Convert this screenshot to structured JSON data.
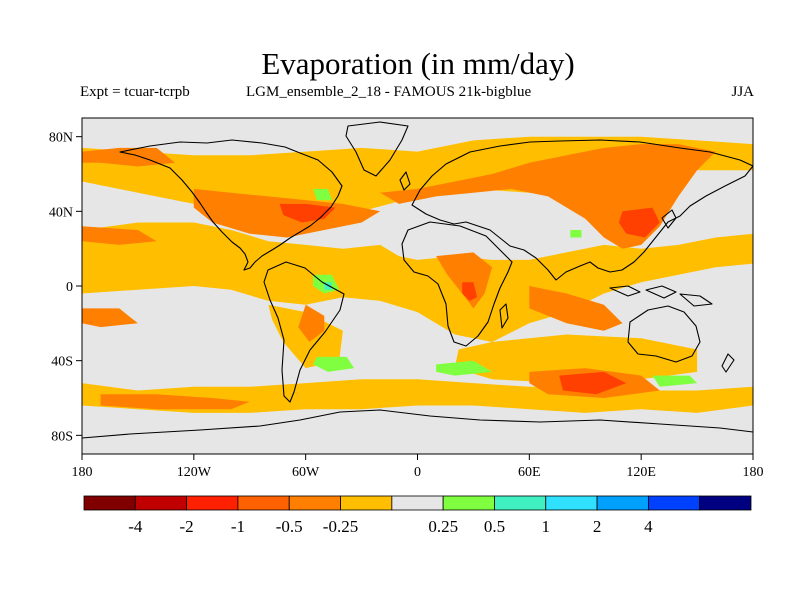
{
  "title": "Evaporation (in mm/day)",
  "subtitle_left": "Expt = tcuar-tcrpb",
  "subtitle_center": "LGM_ensemble_2_18 - FAMOUS 21k-bigblue",
  "subtitle_right": "JJA",
  "map": {
    "projection": "equirectangular",
    "lon_range": [
      -180,
      180
    ],
    "lat_range": [
      -90,
      90
    ],
    "background_color": "#e6e6e6",
    "coastline_color": "#000000",
    "lat_ticks": [
      {
        "value": 80,
        "label": "80N"
      },
      {
        "value": 40,
        "label": "40N"
      },
      {
        "value": 0,
        "label": "0"
      },
      {
        "value": -40,
        "label": "40S"
      },
      {
        "value": -80,
        "label": "80S"
      }
    ],
    "lon_ticks": [
      {
        "value": -180,
        "label": "180"
      },
      {
        "value": -120,
        "label": "120W"
      },
      {
        "value": -60,
        "label": "60W"
      },
      {
        "value": 0,
        "label": "0"
      },
      {
        "value": 60,
        "label": "60E"
      },
      {
        "value": 120,
        "label": "120E"
      },
      {
        "value": 180,
        "label": "180"
      }
    ],
    "field_regions": [
      {
        "level": -0.25,
        "color": "#ffbf00",
        "points": [
          [
            -180,
            74
          ],
          [
            -150,
            72
          ],
          [
            -120,
            70
          ],
          [
            -90,
            70
          ],
          [
            -60,
            72
          ],
          [
            -30,
            74
          ],
          [
            0,
            72
          ],
          [
            30,
            78
          ],
          [
            60,
            80
          ],
          [
            90,
            80
          ],
          [
            120,
            80
          ],
          [
            150,
            78
          ],
          [
            180,
            76
          ],
          [
            180,
            62
          ],
          [
            150,
            62
          ],
          [
            120,
            58
          ],
          [
            90,
            52
          ],
          [
            60,
            50
          ],
          [
            30,
            52
          ],
          [
            0,
            48
          ],
          [
            -30,
            40
          ],
          [
            -60,
            40
          ],
          [
            -90,
            42
          ],
          [
            -120,
            44
          ],
          [
            -150,
            50
          ],
          [
            -180,
            56
          ]
        ]
      },
      {
        "level": -0.25,
        "color": "#ffbf00",
        "points": [
          [
            -180,
            30
          ],
          [
            -150,
            34
          ],
          [
            -120,
            34
          ],
          [
            -100,
            30
          ],
          [
            -80,
            24
          ],
          [
            -60,
            22
          ],
          [
            -40,
            20
          ],
          [
            -20,
            22
          ],
          [
            -10,
            16
          ],
          [
            0,
            14
          ],
          [
            20,
            16
          ],
          [
            40,
            14
          ],
          [
            60,
            14
          ],
          [
            80,
            18
          ],
          [
            100,
            22
          ],
          [
            120,
            20
          ],
          [
            140,
            22
          ],
          [
            160,
            26
          ],
          [
            180,
            28
          ],
          [
            180,
            12
          ],
          [
            160,
            10
          ],
          [
            140,
            6
          ],
          [
            120,
            2
          ],
          [
            100,
            -4
          ],
          [
            80,
            -14
          ],
          [
            60,
            -20
          ],
          [
            40,
            -30
          ],
          [
            20,
            -26
          ],
          [
            0,
            -14
          ],
          [
            -20,
            -8
          ],
          [
            -40,
            -6
          ],
          [
            -60,
            -10
          ],
          [
            -80,
            -8
          ],
          [
            -100,
            -2
          ],
          [
            -120,
            0
          ],
          [
            -150,
            -2
          ],
          [
            -180,
            -4
          ]
        ]
      },
      {
        "level": -0.25,
        "color": "#ffbf00",
        "points": [
          [
            -80,
            -10
          ],
          [
            -60,
            -14
          ],
          [
            -40,
            -24
          ],
          [
            -42,
            -40
          ],
          [
            -60,
            -44
          ],
          [
            -72,
            -30
          ],
          [
            -78,
            -18
          ]
        ]
      },
      {
        "level": -0.25,
        "color": "#ffbf00",
        "points": [
          [
            40,
            -30
          ],
          [
            80,
            -26
          ],
          [
            120,
            -28
          ],
          [
            150,
            -34
          ],
          [
            150,
            -46
          ],
          [
            120,
            -50
          ],
          [
            80,
            -52
          ],
          [
            40,
            -50
          ],
          [
            20,
            -44
          ],
          [
            22,
            -34
          ]
        ]
      },
      {
        "level": -0.25,
        "color": "#ffbf00",
        "points": [
          [
            -180,
            -52
          ],
          [
            -150,
            -56
          ],
          [
            -120,
            -54
          ],
          [
            -90,
            -54
          ],
          [
            -60,
            -52
          ],
          [
            -30,
            -50
          ],
          [
            0,
            -50
          ],
          [
            30,
            -52
          ],
          [
            60,
            -54
          ],
          [
            90,
            -54
          ],
          [
            120,
            -56
          ],
          [
            150,
            -56
          ],
          [
            180,
            -54
          ],
          [
            180,
            -64
          ],
          [
            150,
            -68
          ],
          [
            120,
            -66
          ],
          [
            90,
            -68
          ],
          [
            60,
            -66
          ],
          [
            30,
            -64
          ],
          [
            0,
            -64
          ],
          [
            -30,
            -66
          ],
          [
            -60,
            -66
          ],
          [
            -90,
            -68
          ],
          [
            -120,
            -68
          ],
          [
            -150,
            -66
          ],
          [
            -180,
            -64
          ]
        ]
      },
      {
        "level": -0.5,
        "color": "#ff8000",
        "points": [
          [
            -180,
            72
          ],
          [
            -160,
            74
          ],
          [
            -140,
            74
          ],
          [
            -130,
            66
          ],
          [
            -150,
            64
          ],
          [
            -170,
            66
          ],
          [
            -180,
            66
          ]
        ]
      },
      {
        "level": -0.5,
        "color": "#ff8000",
        "points": [
          [
            -120,
            52
          ],
          [
            -100,
            50
          ],
          [
            -80,
            48
          ],
          [
            -60,
            46
          ],
          [
            -40,
            44
          ],
          [
            -20,
            40
          ],
          [
            -30,
            34
          ],
          [
            -50,
            30
          ],
          [
            -70,
            26
          ],
          [
            -90,
            28
          ],
          [
            -110,
            34
          ],
          [
            -120,
            42
          ]
        ]
      },
      {
        "level": -0.5,
        "color": "#ff8000",
        "points": [
          [
            -20,
            50
          ],
          [
            0,
            52
          ],
          [
            20,
            56
          ],
          [
            40,
            60
          ],
          [
            60,
            66
          ],
          [
            80,
            70
          ],
          [
            100,
            74
          ],
          [
            120,
            76
          ],
          [
            140,
            76
          ],
          [
            160,
            72
          ],
          [
            150,
            62
          ],
          [
            140,
            48
          ],
          [
            130,
            32
          ],
          [
            120,
            22
          ],
          [
            110,
            20
          ],
          [
            100,
            26
          ],
          [
            90,
            36
          ],
          [
            70,
            48
          ],
          [
            50,
            52
          ],
          [
            30,
            50
          ],
          [
            10,
            48
          ],
          [
            -10,
            44
          ]
        ]
      },
      {
        "level": -0.5,
        "color": "#ff8000",
        "points": [
          [
            10,
            16
          ],
          [
            30,
            18
          ],
          [
            40,
            10
          ],
          [
            36,
            -4
          ],
          [
            30,
            -12
          ],
          [
            24,
            -4
          ],
          [
            16,
            6
          ]
        ]
      },
      {
        "level": -0.5,
        "color": "#ff8000",
        "points": [
          [
            60,
            0
          ],
          [
            80,
            -4
          ],
          [
            100,
            -10
          ],
          [
            110,
            -20
          ],
          [
            100,
            -24
          ],
          [
            80,
            -20
          ],
          [
            60,
            -12
          ]
        ]
      },
      {
        "level": -0.5,
        "color": "#ff8000",
        "points": [
          [
            60,
            -46
          ],
          [
            90,
            -44
          ],
          [
            120,
            -48
          ],
          [
            130,
            -56
          ],
          [
            100,
            -60
          ],
          [
            70,
            -58
          ],
          [
            60,
            -52
          ]
        ]
      },
      {
        "level": -0.5,
        "color": "#ff8000",
        "points": [
          [
            -180,
            32
          ],
          [
            -150,
            30
          ],
          [
            -140,
            24
          ],
          [
            -160,
            22
          ],
          [
            -180,
            24
          ]
        ]
      },
      {
        "level": -0.5,
        "color": "#ff8000",
        "points": [
          [
            -180,
            -12
          ],
          [
            -160,
            -12
          ],
          [
            -150,
            -20
          ],
          [
            -170,
            -22
          ],
          [
            -180,
            -20
          ]
        ]
      },
      {
        "level": -0.5,
        "color": "#ff8000",
        "points": [
          [
            -170,
            -58
          ],
          [
            -140,
            -58
          ],
          [
            -110,
            -60
          ],
          [
            -90,
            -62
          ],
          [
            -100,
            -66
          ],
          [
            -140,
            -66
          ],
          [
            -170,
            -64
          ]
        ]
      },
      {
        "level": -0.5,
        "color": "#ff8000",
        "points": [
          [
            -60,
            -10
          ],
          [
            -50,
            -16
          ],
          [
            -50,
            -24
          ],
          [
            -58,
            -30
          ],
          [
            -64,
            -22
          ]
        ]
      },
      {
        "level": -1,
        "color": "#ff4000",
        "points": [
          [
            -74,
            44
          ],
          [
            -60,
            44
          ],
          [
            -44,
            42
          ],
          [
            -50,
            36
          ],
          [
            -62,
            34
          ],
          [
            -72,
            38
          ]
        ]
      },
      {
        "level": -1,
        "color": "#ff4000",
        "points": [
          [
            110,
            40
          ],
          [
            126,
            42
          ],
          [
            130,
            34
          ],
          [
            122,
            26
          ],
          [
            112,
            28
          ],
          [
            108,
            34
          ]
        ]
      },
      {
        "level": -1,
        "color": "#ff4000",
        "points": [
          [
            24,
            2
          ],
          [
            30,
            2
          ],
          [
            32,
            -6
          ],
          [
            28,
            -8
          ],
          [
            24,
            -4
          ]
        ]
      },
      {
        "level": -1,
        "color": "#ff4000",
        "points": [
          [
            76,
            -48
          ],
          [
            100,
            -46
          ],
          [
            112,
            -52
          ],
          [
            96,
            -58
          ],
          [
            78,
            -56
          ]
        ]
      },
      {
        "level": 0.25,
        "color": "#80ff40",
        "points": [
          [
            -56,
            6
          ],
          [
            -46,
            6
          ],
          [
            -42,
            -2
          ],
          [
            -50,
            -4
          ],
          [
            -56,
            0
          ]
        ]
      },
      {
        "level": 0.25,
        "color": "#80ff40",
        "points": [
          [
            -54,
            -38
          ],
          [
            -38,
            -38
          ],
          [
            -34,
            -44
          ],
          [
            -48,
            -46
          ],
          [
            -56,
            -42
          ]
        ]
      },
      {
        "level": 0.25,
        "color": "#80ff40",
        "points": [
          [
            10,
            -42
          ],
          [
            30,
            -40
          ],
          [
            40,
            -46
          ],
          [
            20,
            -48
          ],
          [
            10,
            -46
          ]
        ]
      },
      {
        "level": 0.25,
        "color": "#80ff40",
        "points": [
          [
            126,
            -48
          ],
          [
            146,
            -48
          ],
          [
            150,
            -52
          ],
          [
            130,
            -54
          ]
        ]
      },
      {
        "level": 0.25,
        "color": "#80ff40",
        "points": [
          [
            -56,
            52
          ],
          [
            -48,
            52
          ],
          [
            -46,
            46
          ],
          [
            -54,
            46
          ]
        ]
      },
      {
        "level": 0.25,
        "color": "#80ff40",
        "points": [
          [
            82,
            30
          ],
          [
            88,
            30
          ],
          [
            88,
            26
          ],
          [
            82,
            26
          ]
        ]
      },
      {
        "level": 0.5,
        "color": "#40f0c0",
        "points": [
          [
            -50,
            2
          ],
          [
            -46,
            2
          ],
          [
            -46,
            -2
          ],
          [
            -50,
            -2
          ]
        ]
      }
    ]
  },
  "colorbar": {
    "colors": [
      "#800000",
      "#c00000",
      "#ff2000",
      "#ff6000",
      "#ff8000",
      "#ffbf00",
      "#e6e6e6",
      "#80ff40",
      "#40f0c0",
      "#30e0ff",
      "#00a0ff",
      "#0040ff",
      "#000080"
    ],
    "labels": [
      "-4",
      "-2",
      "-1",
      "-0.5",
      "-0.25",
      "0.25",
      "0.5",
      "1",
      "2",
      "4"
    ]
  }
}
